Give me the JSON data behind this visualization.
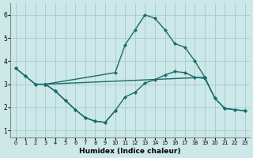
{
  "title": "",
  "xlabel": "Humidex (Indice chaleur)",
  "bg_color": "#cce8e8",
  "grid_color": "#aacece",
  "line_color": "#1a6b6b",
  "marker": "D",
  "markersize": 2.2,
  "linewidth": 1.0,
  "ylim": [
    0.7,
    6.5
  ],
  "xlim": [
    -0.5,
    23.5
  ],
  "yticks": [
    1,
    2,
    3,
    4,
    5,
    6
  ],
  "xticks": [
    0,
    1,
    2,
    3,
    4,
    5,
    6,
    7,
    8,
    9,
    10,
    11,
    12,
    13,
    14,
    15,
    16,
    17,
    18,
    19,
    20,
    21,
    22,
    23
  ],
  "series": [
    {
      "x": [
        0,
        1,
        2,
        3,
        4,
        5,
        6,
        7,
        8,
        9,
        10,
        11,
        12,
        13,
        14,
        15,
        16,
        17,
        18,
        19,
        20,
        21,
        22,
        23
      ],
      "y": [
        3.7,
        3.35,
        3.0,
        3.0,
        2.7,
        2.3,
        1.9,
        1.55,
        1.4,
        1.35,
        1.85,
        2.45,
        2.65,
        3.05,
        3.2,
        3.4,
        3.55,
        3.5,
        3.3,
        3.25,
        2.4,
        1.95,
        1.9,
        1.85
      ]
    },
    {
      "x": [
        0,
        1,
        2,
        3
      ],
      "y": [
        3.7,
        3.35,
        3.0,
        3.0
      ]
    },
    {
      "x": [
        3,
        10,
        11,
        12,
        13,
        14,
        15,
        16,
        17,
        18,
        19
      ],
      "y": [
        3.0,
        3.5,
        4.7,
        5.35,
        6.0,
        5.85,
        5.35,
        4.75,
        4.6,
        4.0,
        3.3
      ]
    },
    {
      "x": [
        3,
        19,
        20,
        21,
        22,
        23
      ],
      "y": [
        3.0,
        3.3,
        2.4,
        1.95,
        1.9,
        1.85
      ]
    },
    {
      "x": [
        3,
        4,
        5,
        6,
        7,
        8,
        9,
        10
      ],
      "y": [
        3.0,
        2.7,
        2.3,
        1.9,
        1.55,
        1.4,
        1.35,
        1.85
      ]
    }
  ]
}
